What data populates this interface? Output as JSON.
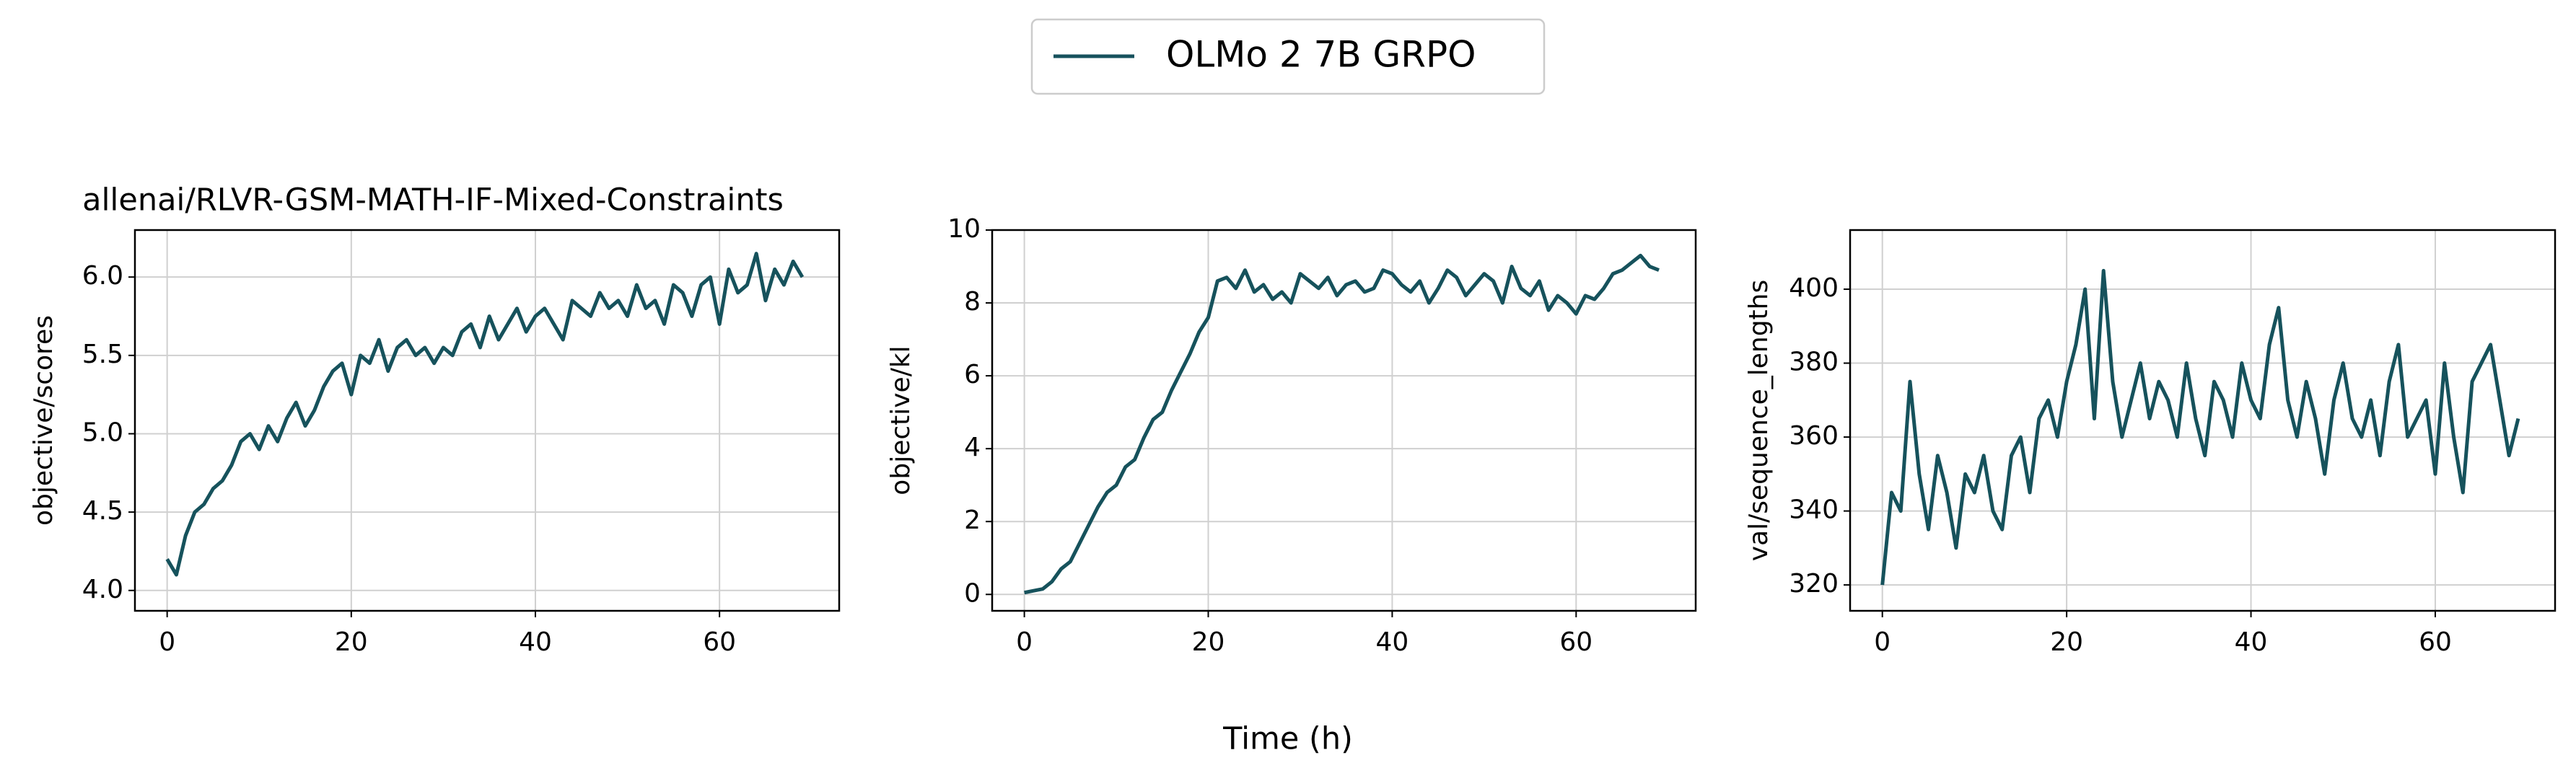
{
  "chart_data": [
    {
      "type": "line",
      "title": "allenai/RLVR-GSM-MATH-IF-Mixed-Constraints",
      "ylabel": "objective/scores",
      "x": [
        0,
        1,
        2,
        3,
        4,
        5,
        6,
        7,
        8,
        9,
        10,
        11,
        12,
        13,
        14,
        15,
        16,
        17,
        18,
        19,
        20,
        21,
        22,
        23,
        24,
        25,
        26,
        27,
        28,
        29,
        30,
        31,
        32,
        33,
        34,
        35,
        36,
        37,
        38,
        39,
        40,
        41,
        42,
        43,
        44,
        45,
        46,
        47,
        48,
        49,
        50,
        51,
        52,
        53,
        54,
        55,
        56,
        57,
        58,
        59,
        60,
        61,
        62,
        63,
        64,
        65,
        66,
        67,
        68,
        69
      ],
      "series": [
        {
          "name": "OLMo 2 7B GRPO",
          "color": "#16525c",
          "values": [
            4.2,
            4.1,
            4.35,
            4.5,
            4.55,
            4.65,
            4.7,
            4.8,
            4.95,
            5.0,
            4.9,
            5.05,
            4.95,
            5.1,
            5.2,
            5.05,
            5.15,
            5.3,
            5.4,
            5.45,
            5.25,
            5.5,
            5.45,
            5.6,
            5.4,
            5.55,
            5.6,
            5.5,
            5.55,
            5.45,
            5.55,
            5.5,
            5.65,
            5.7,
            5.55,
            5.75,
            5.6,
            5.7,
            5.8,
            5.65,
            5.75,
            5.8,
            5.7,
            5.6,
            5.85,
            5.8,
            5.75,
            5.9,
            5.8,
            5.85,
            5.75,
            5.95,
            5.8,
            5.85,
            5.7,
            5.95,
            5.9,
            5.75,
            5.95,
            6.0,
            5.7,
            6.05,
            5.9,
            5.95,
            6.15,
            5.85,
            6.05,
            5.95,
            6.1,
            6.0
          ]
        }
      ],
      "xlim": [
        -3.5,
        73
      ],
      "xticks": [
        0,
        20,
        40,
        60
      ],
      "ylim": [
        3.87,
        6.3
      ],
      "yticks": [
        {
          "value": 4,
          "label": "4.0"
        },
        4.5,
        {
          "value": 5,
          "label": "5.0"
        },
        5.5,
        {
          "value": 6,
          "label": "6.0"
        }
      ],
      "grid": true
    },
    {
      "type": "line",
      "ylabel": "objective/kl",
      "xlabel": "Time (h)",
      "x": [
        0,
        1,
        2,
        3,
        4,
        5,
        6,
        7,
        8,
        9,
        10,
        11,
        12,
        13,
        14,
        15,
        16,
        17,
        18,
        19,
        20,
        21,
        22,
        23,
        24,
        25,
        26,
        27,
        28,
        29,
        30,
        31,
        32,
        33,
        34,
        35,
        36,
        37,
        38,
        39,
        40,
        41,
        42,
        43,
        44,
        45,
        46,
        47,
        48,
        49,
        50,
        51,
        52,
        53,
        54,
        55,
        56,
        57,
        58,
        59,
        60,
        61,
        62,
        63,
        64,
        65,
        66,
        67,
        68,
        69
      ],
      "series": [
        {
          "color": "#16525c",
          "values": [
            0.05,
            0.1,
            0.15,
            0.35,
            0.7,
            0.9,
            1.4,
            1.9,
            2.4,
            2.8,
            3.0,
            3.5,
            3.7,
            4.3,
            4.8,
            5.0,
            5.6,
            6.1,
            6.6,
            7.2,
            7.6,
            8.6,
            8.7,
            8.4,
            8.9,
            8.3,
            8.5,
            8.1,
            8.3,
            8.0,
            8.8,
            8.6,
            8.4,
            8.7,
            8.2,
            8.5,
            8.6,
            8.3,
            8.4,
            8.9,
            8.8,
            8.5,
            8.3,
            8.6,
            8.0,
            8.4,
            8.9,
            8.7,
            8.2,
            8.5,
            8.8,
            8.6,
            8.0,
            9.0,
            8.4,
            8.2,
            8.6,
            7.8,
            8.2,
            8.0,
            7.7,
            8.2,
            8.1,
            8.4,
            8.8,
            8.9,
            9.1,
            9.3,
            9.0,
            8.9
          ]
        }
      ],
      "xlim": [
        -3.5,
        73
      ],
      "xticks": [
        0,
        20,
        40,
        60
      ],
      "ylim": [
        -0.45,
        10
      ],
      "yticks": [
        0,
        2,
        4,
        6,
        8,
        10
      ],
      "grid": true
    },
    {
      "type": "line",
      "ylabel": "val/sequence_lengths",
      "x": [
        0,
        1,
        2,
        3,
        4,
        5,
        6,
        7,
        8,
        9,
        10,
        11,
        12,
        13,
        14,
        15,
        16,
        17,
        18,
        19,
        20,
        21,
        22,
        23,
        24,
        25,
        26,
        27,
        28,
        29,
        30,
        31,
        32,
        33,
        34,
        35,
        36,
        37,
        38,
        39,
        40,
        41,
        42,
        43,
        44,
        45,
        46,
        47,
        48,
        49,
        50,
        51,
        52,
        53,
        54,
        55,
        56,
        57,
        58,
        59,
        60,
        61,
        62,
        63,
        64,
        65,
        66,
        67,
        68,
        69
      ],
      "series": [
        {
          "color": "#16525c",
          "values": [
            320,
            345,
            340,
            375,
            350,
            335,
            355,
            345,
            330,
            350,
            345,
            355,
            340,
            335,
            355,
            360,
            345,
            365,
            370,
            360,
            375,
            385,
            400,
            365,
            405,
            375,
            360,
            370,
            380,
            365,
            375,
            370,
            360,
            380,
            365,
            355,
            375,
            370,
            360,
            380,
            370,
            365,
            385,
            395,
            370,
            360,
            375,
            365,
            350,
            370,
            380,
            365,
            360,
            370,
            355,
            375,
            385,
            360,
            365,
            370,
            350,
            380,
            360,
            345,
            375,
            380,
            385,
            370,
            355,
            365
          ]
        }
      ],
      "xlim": [
        -3.5,
        73
      ],
      "xticks": [
        0,
        20,
        40,
        60
      ],
      "ylim": [
        313,
        416
      ],
      "yticks": [
        320,
        340,
        360,
        380,
        400
      ],
      "grid": true
    }
  ]
}
